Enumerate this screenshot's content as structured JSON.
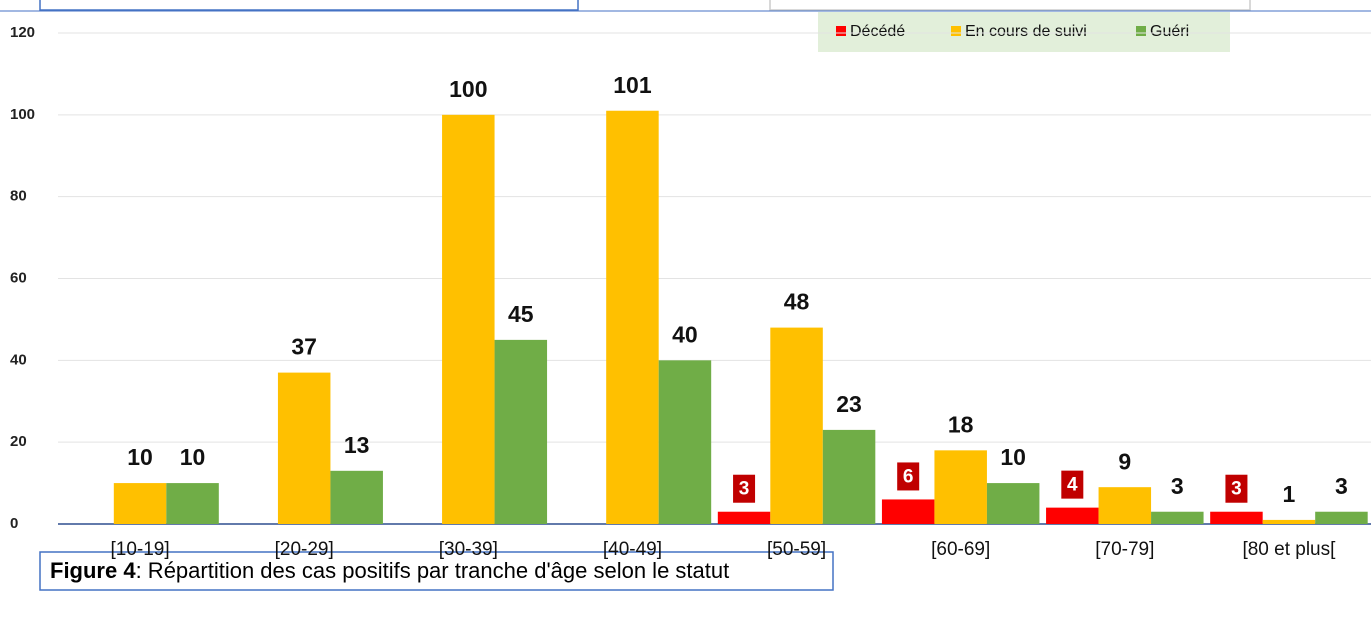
{
  "chart_data": {
    "type": "bar",
    "categories": [
      "[10-19]",
      "[20-29]",
      "[30-39]",
      "[40-49]",
      "[50-59]",
      "[60-69]",
      "[70-79]",
      "[80 et plus["
    ],
    "series": [
      {
        "name": "Décédé",
        "color": "#ff0000",
        "values": [
          null,
          null,
          null,
          null,
          3,
          6,
          4,
          3
        ]
      },
      {
        "name": "En cours de suivi",
        "color": "#ffc000",
        "values": [
          10,
          37,
          100,
          101,
          48,
          18,
          9,
          1
        ]
      },
      {
        "name": "Guéri",
        "color": "#70ad47",
        "values": [
          10,
          13,
          45,
          40,
          23,
          10,
          3,
          3
        ]
      }
    ],
    "ylim": [
      0,
      120
    ],
    "yticks": [
      0,
      20,
      40,
      60,
      80,
      100,
      120
    ],
    "grid": true,
    "legend": "top-right",
    "caption_label": "Figure 4",
    "caption_text": ": Répartition des cas positifs par tranche d'âge selon le statut"
  }
}
